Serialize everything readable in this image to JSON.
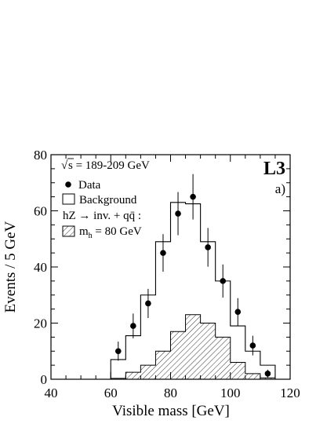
{
  "chart_data": {
    "type": "histogram",
    "xlabel": "Visible mass  [GeV]",
    "ylabel": "Events / 5 GeV",
    "xlim": [
      40,
      120
    ],
    "ylim": [
      0,
      80
    ],
    "xticks": [
      "40",
      "60",
      "80",
      "100",
      "120"
    ],
    "yticks": [
      "0",
      "20",
      "40",
      "60",
      "80"
    ],
    "experiment_label": "L3",
    "panel_label": "a)",
    "legend_position": "top-left",
    "legend": {
      "energy": "√s = 189-209 GeV",
      "energy_root": "√",
      "energy_rest": "s = 189-209 GeV",
      "data": "Data",
      "background": "Background",
      "signal_process": "hZ → inv. + qq̄ :",
      "signal_mass": "m",
      "signal_mass_sub": "h",
      "signal_mass_rest": " = 80 GeV"
    },
    "bin_edges": [
      60,
      65,
      70,
      75,
      80,
      85,
      90,
      95,
      100,
      105,
      110,
      115
    ],
    "background": [
      7,
      15.5,
      30,
      49,
      63,
      62.5,
      49,
      35,
      19,
      10,
      5
    ],
    "signal": [
      0.3,
      2.5,
      5,
      10,
      17,
      23,
      20,
      15,
      6,
      2,
      0.5
    ],
    "data": {
      "x": [
        62.5,
        67.5,
        72.5,
        77.5,
        82.5,
        87.5,
        92.5,
        97.5,
        102.5,
        107.5,
        112.5
      ],
      "y": [
        10,
        19,
        27,
        45,
        59,
        65,
        47,
        35,
        24,
        12,
        2
      ],
      "err": [
        3.4,
        4.4,
        5.2,
        6.7,
        7.7,
        8.1,
        6.9,
        5.9,
        4.9,
        3.5,
        1.4
      ]
    }
  }
}
